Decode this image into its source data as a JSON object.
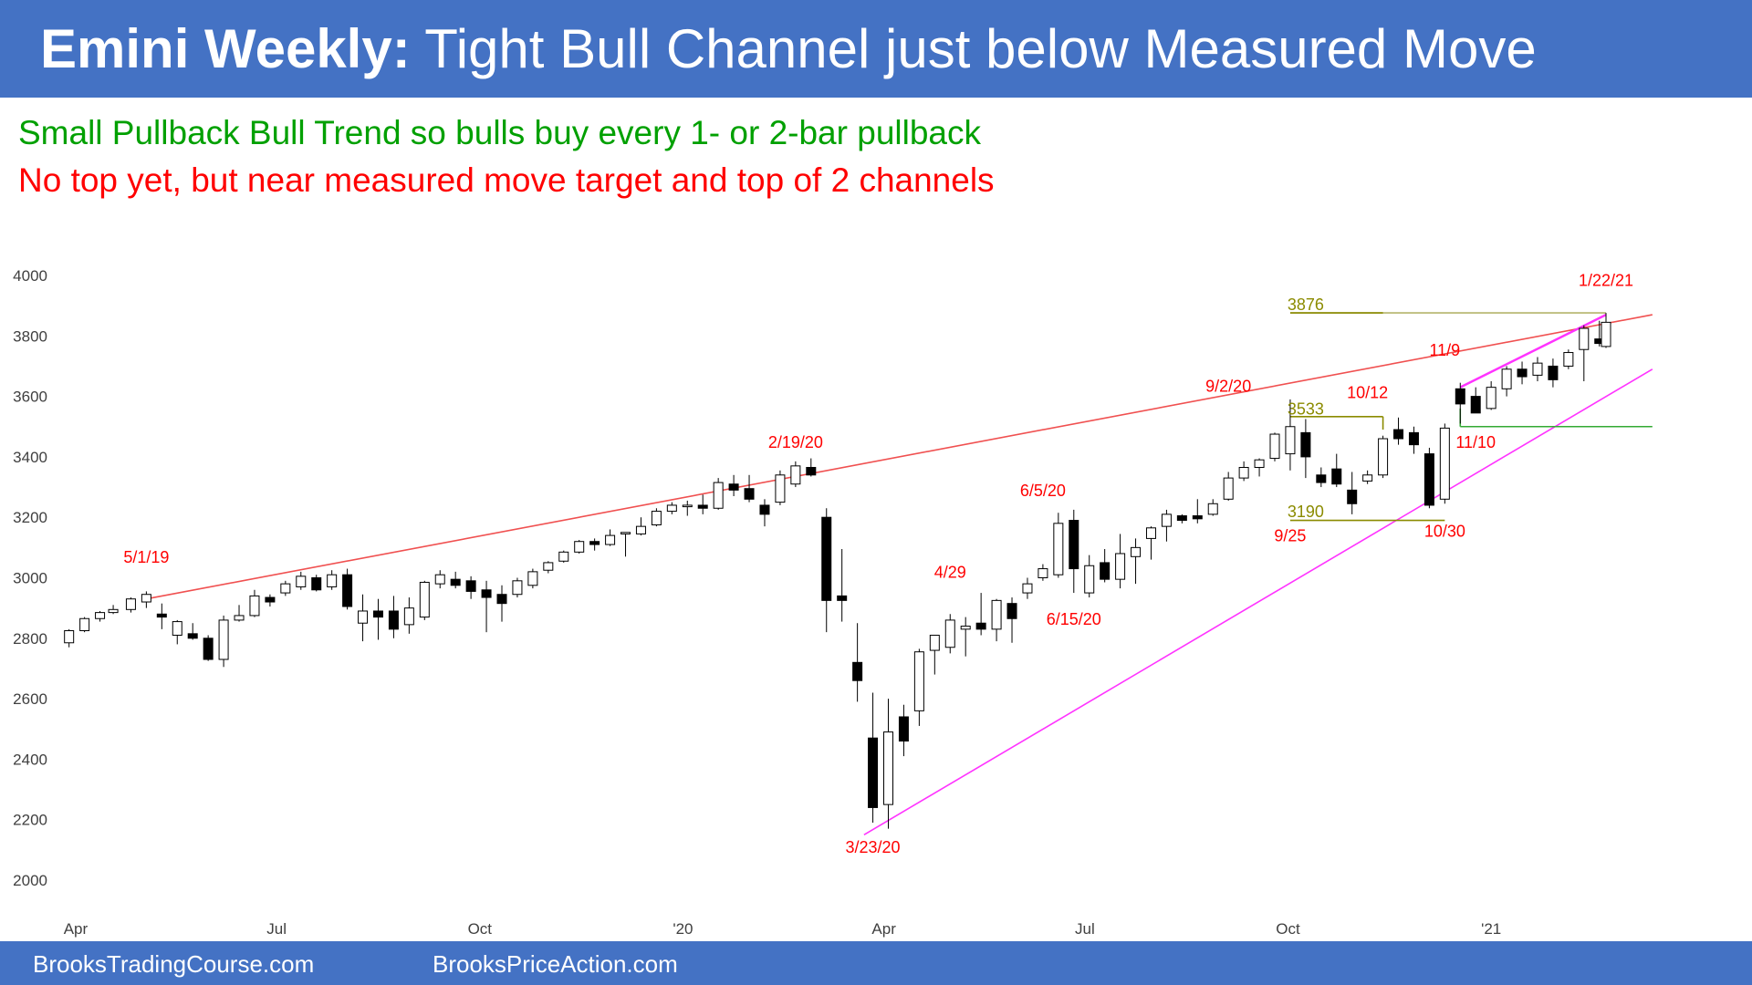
{
  "header": {
    "title_bold": "Emini Weekly:",
    "title_rest": " Tight Bull Channel just below Measured Move"
  },
  "subtitle": {
    "line1": "Small Pullback Bull Trend so bulls buy every 1- or 2-bar pullback",
    "line2": "No top yet, but near measured move target and top of 2 channels"
  },
  "footer": {
    "left": "BrooksTradingCourse.com",
    "right": "BrooksPriceAction.com"
  },
  "colors": {
    "header": "#4472c4",
    "green_text": "#00a000",
    "red_text": "#ff0000",
    "upper_trendline": "#f05050",
    "lower_trendline": "#ff33ff",
    "target_line": "#8b8b00",
    "green_line": "#33aa33"
  },
  "chart_data": {
    "type": "candlestick",
    "ylim": [
      2000,
      4000
    ],
    "yticks": [
      2000,
      2200,
      2400,
      2600,
      2800,
      3000,
      3200,
      3400,
      3600,
      3800,
      4000
    ],
    "x_start": "2019-03-25",
    "x_end": "2021-02-22",
    "xticks": [
      {
        "label": "Apr",
        "date": "2019-04-01"
      },
      {
        "label": "Jul",
        "date": "2019-07-01"
      },
      {
        "label": "Oct",
        "date": "2019-10-01"
      },
      {
        "label": "'20",
        "date": "2020-01-01"
      },
      {
        "label": "Apr",
        "date": "2020-04-01"
      },
      {
        "label": "Jul",
        "date": "2020-07-01"
      },
      {
        "label": "Oct",
        "date": "2020-10-01"
      },
      {
        "label": "'21",
        "date": "2021-01-01"
      }
    ],
    "candles": [
      {
        "date": "2019-03-29",
        "o": 2785,
        "h": 2830,
        "l": 2770,
        "c": 2825
      },
      {
        "date": "2019-04-05",
        "o": 2825,
        "h": 2870,
        "l": 2820,
        "c": 2865
      },
      {
        "date": "2019-04-12",
        "o": 2865,
        "h": 2890,
        "l": 2855,
        "c": 2885
      },
      {
        "date": "2019-04-18",
        "o": 2885,
        "h": 2910,
        "l": 2880,
        "c": 2895
      },
      {
        "date": "2019-04-26",
        "o": 2895,
        "h": 2935,
        "l": 2885,
        "c": 2930
      },
      {
        "date": "2019-05-03",
        "o": 2920,
        "h": 2955,
        "l": 2900,
        "c": 2945
      },
      {
        "date": "2019-05-10",
        "o": 2880,
        "h": 2915,
        "l": 2830,
        "c": 2870
      },
      {
        "date": "2019-05-17",
        "o": 2810,
        "h": 2860,
        "l": 2780,
        "c": 2855
      },
      {
        "date": "2019-05-24",
        "o": 2815,
        "h": 2850,
        "l": 2795,
        "c": 2800
      },
      {
        "date": "2019-05-31",
        "o": 2800,
        "h": 2810,
        "l": 2725,
        "c": 2730
      },
      {
        "date": "2019-06-07",
        "o": 2730,
        "h": 2875,
        "l": 2705,
        "c": 2860
      },
      {
        "date": "2019-06-14",
        "o": 2860,
        "h": 2910,
        "l": 2855,
        "c": 2875
      },
      {
        "date": "2019-06-21",
        "o": 2875,
        "h": 2960,
        "l": 2870,
        "c": 2940
      },
      {
        "date": "2019-06-28",
        "o": 2935,
        "h": 2945,
        "l": 2905,
        "c": 2920
      },
      {
        "date": "2019-07-05",
        "o": 2950,
        "h": 2990,
        "l": 2940,
        "c": 2980
      },
      {
        "date": "2019-07-12",
        "o": 2970,
        "h": 3020,
        "l": 2960,
        "c": 3005
      },
      {
        "date": "2019-07-19",
        "o": 3000,
        "h": 3010,
        "l": 2955,
        "c": 2960
      },
      {
        "date": "2019-07-26",
        "o": 2970,
        "h": 3025,
        "l": 2960,
        "c": 3010
      },
      {
        "date": "2019-08-02",
        "o": 3010,
        "h": 3030,
        "l": 2895,
        "c": 2905
      },
      {
        "date": "2019-08-09",
        "o": 2850,
        "h": 2945,
        "l": 2790,
        "c": 2890
      },
      {
        "date": "2019-08-16",
        "o": 2890,
        "h": 2930,
        "l": 2795,
        "c": 2870
      },
      {
        "date": "2019-08-23",
        "o": 2890,
        "h": 2940,
        "l": 2800,
        "c": 2830
      },
      {
        "date": "2019-08-30",
        "o": 2845,
        "h": 2935,
        "l": 2815,
        "c": 2900
      },
      {
        "date": "2019-09-06",
        "o": 2870,
        "h": 2990,
        "l": 2860,
        "c": 2985
      },
      {
        "date": "2019-09-13",
        "o": 2980,
        "h": 3025,
        "l": 2965,
        "c": 3010
      },
      {
        "date": "2019-09-20",
        "o": 2995,
        "h": 3020,
        "l": 2965,
        "c": 2975
      },
      {
        "date": "2019-09-27",
        "o": 2990,
        "h": 3005,
        "l": 2930,
        "c": 2955
      },
      {
        "date": "2019-10-04",
        "o": 2960,
        "h": 2990,
        "l": 2820,
        "c": 2935
      },
      {
        "date": "2019-10-11",
        "o": 2945,
        "h": 2975,
        "l": 2855,
        "c": 2915
      },
      {
        "date": "2019-10-18",
        "o": 2945,
        "h": 3000,
        "l": 2935,
        "c": 2990
      },
      {
        "date": "2019-10-25",
        "o": 2975,
        "h": 3030,
        "l": 2965,
        "c": 3020
      },
      {
        "date": "2019-11-01",
        "o": 3025,
        "h": 3055,
        "l": 3015,
        "c": 3050
      },
      {
        "date": "2019-11-08",
        "o": 3055,
        "h": 3090,
        "l": 3050,
        "c": 3085
      },
      {
        "date": "2019-11-15",
        "o": 3085,
        "h": 3125,
        "l": 3080,
        "c": 3120
      },
      {
        "date": "2019-11-22",
        "o": 3120,
        "h": 3130,
        "l": 3090,
        "c": 3110
      },
      {
        "date": "2019-11-29",
        "o": 3110,
        "h": 3160,
        "l": 3105,
        "c": 3140
      },
      {
        "date": "2019-12-06",
        "o": 3145,
        "h": 3150,
        "l": 3070,
        "c": 3150
      },
      {
        "date": "2019-12-13",
        "o": 3145,
        "h": 3200,
        "l": 3140,
        "c": 3170
      },
      {
        "date": "2019-12-20",
        "o": 3175,
        "h": 3230,
        "l": 3170,
        "c": 3220
      },
      {
        "date": "2019-12-27",
        "o": 3220,
        "h": 3250,
        "l": 3210,
        "c": 3240
      },
      {
        "date": "2020-01-03",
        "o": 3235,
        "h": 3255,
        "l": 3205,
        "c": 3240
      },
      {
        "date": "2020-01-10",
        "o": 3240,
        "h": 3275,
        "l": 3210,
        "c": 3230
      },
      {
        "date": "2020-01-17",
        "o": 3230,
        "h": 3330,
        "l": 3225,
        "c": 3315
      },
      {
        "date": "2020-01-24",
        "o": 3310,
        "h": 3340,
        "l": 3270,
        "c": 3290
      },
      {
        "date": "2020-01-31",
        "o": 3295,
        "h": 3340,
        "l": 3250,
        "c": 3260
      },
      {
        "date": "2020-02-07",
        "o": 3240,
        "h": 3260,
        "l": 3170,
        "c": 3210
      },
      {
        "date": "2020-02-14",
        "o": 3250,
        "h": 3355,
        "l": 3240,
        "c": 3340
      },
      {
        "date": "2020-02-21",
        "o": 3310,
        "h": 3385,
        "l": 3300,
        "c": 3370
      },
      {
        "date": "2020-02-28",
        "o": 3365,
        "h": 3395,
        "l": 3335,
        "c": 3340
      },
      {
        "date": "2020-03-06",
        "o": 3200,
        "h": 3230,
        "l": 2820,
        "c": 2925
      },
      {
        "date": "2020-03-13",
        "o": 2940,
        "h": 3095,
        "l": 2855,
        "c": 2925
      },
      {
        "date": "2020-03-20",
        "o": 2720,
        "h": 2850,
        "l": 2590,
        "c": 2660
      },
      {
        "date": "2020-03-27",
        "o": 2470,
        "h": 2620,
        "l": 2190,
        "c": 2240
      },
      {
        "date": "2020-04-03",
        "o": 2250,
        "h": 2600,
        "l": 2170,
        "c": 2490
      },
      {
        "date": "2020-04-10",
        "o": 2540,
        "h": 2580,
        "l": 2410,
        "c": 2460
      },
      {
        "date": "2020-04-17",
        "o": 2560,
        "h": 2765,
        "l": 2510,
        "c": 2755
      },
      {
        "date": "2020-04-24",
        "o": 2760,
        "h": 2800,
        "l": 2680,
        "c": 2810
      },
      {
        "date": "2020-05-01",
        "o": 2770,
        "h": 2880,
        "l": 2750,
        "c": 2860
      },
      {
        "date": "2020-05-08",
        "o": 2830,
        "h": 2870,
        "l": 2740,
        "c": 2840
      },
      {
        "date": "2020-05-15",
        "o": 2850,
        "h": 2950,
        "l": 2810,
        "c": 2830
      },
      {
        "date": "2020-05-22",
        "o": 2830,
        "h": 2930,
        "l": 2790,
        "c": 2925
      },
      {
        "date": "2020-05-29",
        "o": 2915,
        "h": 2935,
        "l": 2785,
        "c": 2865
      },
      {
        "date": "2020-06-05",
        "o": 2950,
        "h": 3000,
        "l": 2930,
        "c": 2980
      },
      {
        "date": "2020-06-12",
        "o": 3000,
        "h": 3045,
        "l": 2990,
        "c": 3030
      },
      {
        "date": "2020-06-19",
        "o": 3010,
        "h": 3215,
        "l": 3000,
        "c": 3180
      },
      {
        "date": "2020-06-26",
        "o": 3190,
        "h": 3225,
        "l": 2950,
        "c": 3030
      },
      {
        "date": "2020-07-03",
        "o": 2950,
        "h": 3075,
        "l": 2935,
        "c": 3040
      },
      {
        "date": "2020-07-10",
        "o": 3050,
        "h": 3095,
        "l": 2985,
        "c": 2995
      },
      {
        "date": "2020-07-17",
        "o": 2995,
        "h": 3145,
        "l": 2965,
        "c": 3080
      },
      {
        "date": "2020-07-24",
        "o": 3070,
        "h": 3130,
        "l": 2980,
        "c": 3100
      },
      {
        "date": "2020-07-31",
        "o": 3130,
        "h": 3170,
        "l": 3060,
        "c": 3165
      },
      {
        "date": "2020-08-07",
        "o": 3170,
        "h": 3225,
        "l": 3120,
        "c": 3210
      },
      {
        "date": "2020-08-14",
        "o": 3205,
        "h": 3210,
        "l": 3180,
        "c": 3190
      },
      {
        "date": "2020-08-21",
        "o": 3205,
        "h": 3260,
        "l": 3180,
        "c": 3195
      },
      {
        "date": "2020-08-28",
        "o": 3210,
        "h": 3260,
        "l": 3205,
        "c": 3245
      },
      {
        "date": "2020-09-04",
        "o": 3260,
        "h": 3350,
        "l": 3255,
        "c": 3330
      },
      {
        "date": "2020-09-11",
        "o": 3330,
        "h": 3385,
        "l": 3320,
        "c": 3365
      },
      {
        "date": "2020-09-18",
        "o": 3365,
        "h": 3395,
        "l": 3335,
        "c": 3390
      },
      {
        "date": "2020-09-25",
        "o": 3395,
        "h": 3480,
        "l": 3385,
        "c": 3475
      },
      {
        "date": "2020-10-02",
        "o": 3410,
        "h": 3590,
        "l": 3355,
        "c": 3500
      },
      {
        "date": "2020-10-09",
        "o": 3480,
        "h": 3525,
        "l": 3330,
        "c": 3400
      },
      {
        "date": "2020-10-16",
        "o": 3340,
        "h": 3365,
        "l": 3300,
        "c": 3315
      },
      {
        "date": "2020-10-23",
        "o": 3360,
        "h": 3410,
        "l": 3300,
        "c": 3310
      },
      {
        "date": "2020-10-30",
        "o": 3290,
        "h": 3350,
        "l": 3210,
        "c": 3245
      },
      {
        "date": "2020-11-06",
        "o": 3320,
        "h": 3355,
        "l": 3310,
        "c": 3340
      },
      {
        "date": "2020-11-13",
        "o": 3340,
        "h": 3470,
        "l": 3330,
        "c": 3460
      },
      {
        "date": "2020-11-20",
        "o": 3490,
        "h": 3530,
        "l": 3440,
        "c": 3460
      },
      {
        "date": "2020-11-27",
        "o": 3480,
        "h": 3500,
        "l": 3410,
        "c": 3440
      },
      {
        "date": "2020-12-04",
        "o": 3410,
        "h": 3430,
        "l": 3230,
        "c": 3240
      },
      {
        "date": "2020-12-11",
        "o": 3260,
        "h": 3510,
        "l": 3245,
        "c": 3495
      },
      {
        "date": "2020-12-18",
        "o": 3625,
        "h": 3645,
        "l": 3510,
        "c": 3575
      },
      {
        "date": "2020-12-25",
        "o": 3600,
        "h": 3630,
        "l": 3555,
        "c": 3545
      },
      {
        "date": "2021-01-01",
        "o": 3560,
        "h": 3650,
        "l": 3555,
        "c": 3630
      },
      {
        "date": "2021-01-08",
        "o": 3625,
        "h": 3700,
        "l": 3600,
        "c": 3690
      },
      {
        "date": "2021-01-15",
        "o": 3690,
        "h": 3715,
        "l": 3640,
        "c": 3665
      },
      {
        "date": "2021-01-22",
        "o": 3670,
        "h": 3730,
        "l": 3650,
        "c": 3710
      },
      {
        "date": "2021-01-29",
        "o": 3700,
        "h": 3725,
        "l": 3630,
        "c": 3655
      },
      {
        "date": "2021-02-05",
        "o": 3700,
        "h": 3755,
        "l": 3690,
        "c": 3745
      },
      {
        "date": "2021-02-12",
        "o": 3755,
        "h": 3835,
        "l": 3650,
        "c": 3825
      },
      {
        "date": "2021-02-19",
        "o": 3790,
        "h": 3850,
        "l": 3765,
        "c": 3775
      },
      {
        "date": "2021-02-22",
        "o": 3765,
        "h": 3876,
        "l": 3760,
        "c": 3845
      }
    ],
    "lines": [
      {
        "name": "upper-channel-line",
        "color": "#f05050",
        "from": {
          "date": "2019-05-03",
          "y": 2930
        },
        "to": {
          "date": "2021-03-15",
          "y": 3870
        }
      },
      {
        "name": "lower-channel-line",
        "color": "#ff33ff",
        "from": {
          "date": "2020-03-23",
          "y": 2150
        },
        "to": {
          "date": "2021-03-15",
          "y": 3690
        }
      },
      {
        "name": "micro-channel-line",
        "color": "#ff33ff",
        "from": {
          "date": "2020-12-18",
          "y": 3630
        },
        "to": {
          "date": "2021-02-22",
          "y": 3870
        }
      },
      {
        "name": "target-3876-line",
        "color": "#b4b46a",
        "from": {
          "date": "2020-10-02",
          "y": 3876
        },
        "to": {
          "date": "2021-02-22",
          "y": 3876
        }
      },
      {
        "name": "target-3876-line-dark",
        "color": "#8b8b00",
        "from": {
          "date": "2020-10-02",
          "y": 3876
        },
        "to": {
          "date": "2020-11-13",
          "y": 3876
        }
      },
      {
        "name": "level-3533-line",
        "color": "#8b8b00",
        "from": {
          "date": "2020-10-02",
          "y": 3533
        },
        "to": {
          "date": "2020-11-13",
          "y": 3533
        }
      },
      {
        "name": "level-3533-tick",
        "color": "#8b8b00",
        "from": {
          "date": "2020-11-13",
          "y": 3533
        },
        "to": {
          "date": "2020-11-13",
          "y": 3490
        }
      },
      {
        "name": "level-3190-line",
        "color": "#8b8b00",
        "from": {
          "date": "2020-10-02",
          "y": 3190
        },
        "to": {
          "date": "2020-12-11",
          "y": 3190
        }
      },
      {
        "name": "green-3500-line",
        "color": "#33aa33",
        "from": {
          "date": "2020-12-18",
          "y": 3500
        },
        "to": {
          "date": "2021-03-15",
          "y": 3500
        }
      },
      {
        "name": "green-3500-tick",
        "color": "#33aa33",
        "from": {
          "date": "2020-12-18",
          "y": 3500
        },
        "to": {
          "date": "2020-12-18",
          "y": 3560
        }
      }
    ],
    "annotations": [
      {
        "text": "5/1/19",
        "date": "2019-05-03",
        "y": 3050,
        "color": "#ff0000"
      },
      {
        "text": "2/19/20",
        "date": "2020-02-21",
        "y": 3430,
        "color": "#ff0000"
      },
      {
        "text": "3/23/20",
        "date": "2020-03-27",
        "y": 2090,
        "color": "#ff0000"
      },
      {
        "text": "4/29",
        "date": "2020-05-01",
        "y": 3000,
        "color": "#ff0000"
      },
      {
        "text": "6/5/20",
        "date": "2020-06-12",
        "y": 3270,
        "color": "#ff0000"
      },
      {
        "text": "6/15/20",
        "date": "2020-06-26",
        "y": 2845,
        "color": "#ff0000"
      },
      {
        "text": "9/2/20",
        "date": "2020-09-04",
        "y": 3615,
        "color": "#ff0000"
      },
      {
        "text": "3533",
        "date": "2020-10-09",
        "y": 3540,
        "color": "#8b8b00"
      },
      {
        "text": "10/12",
        "date": "2020-11-06",
        "y": 3595,
        "color": "#ff0000"
      },
      {
        "text": "3190",
        "date": "2020-10-09",
        "y": 3200,
        "color": "#8b8b00"
      },
      {
        "text": "9/25",
        "date": "2020-10-02",
        "y": 3120,
        "color": "#ff0000"
      },
      {
        "text": "10/30",
        "date": "2020-12-11",
        "y": 3135,
        "color": "#ff0000"
      },
      {
        "text": "11/10",
        "date": "2020-12-25",
        "y": 3430,
        "color": "#ff0000"
      },
      {
        "text": "11/9",
        "date": "2020-12-11",
        "y": 3735,
        "color": "#ff0000"
      },
      {
        "text": "3876",
        "date": "2020-10-09",
        "y": 3885,
        "color": "#8b8b00"
      },
      {
        "text": "1/22/21",
        "date": "2021-02-22",
        "y": 3965,
        "color": "#ff0000"
      }
    ]
  }
}
